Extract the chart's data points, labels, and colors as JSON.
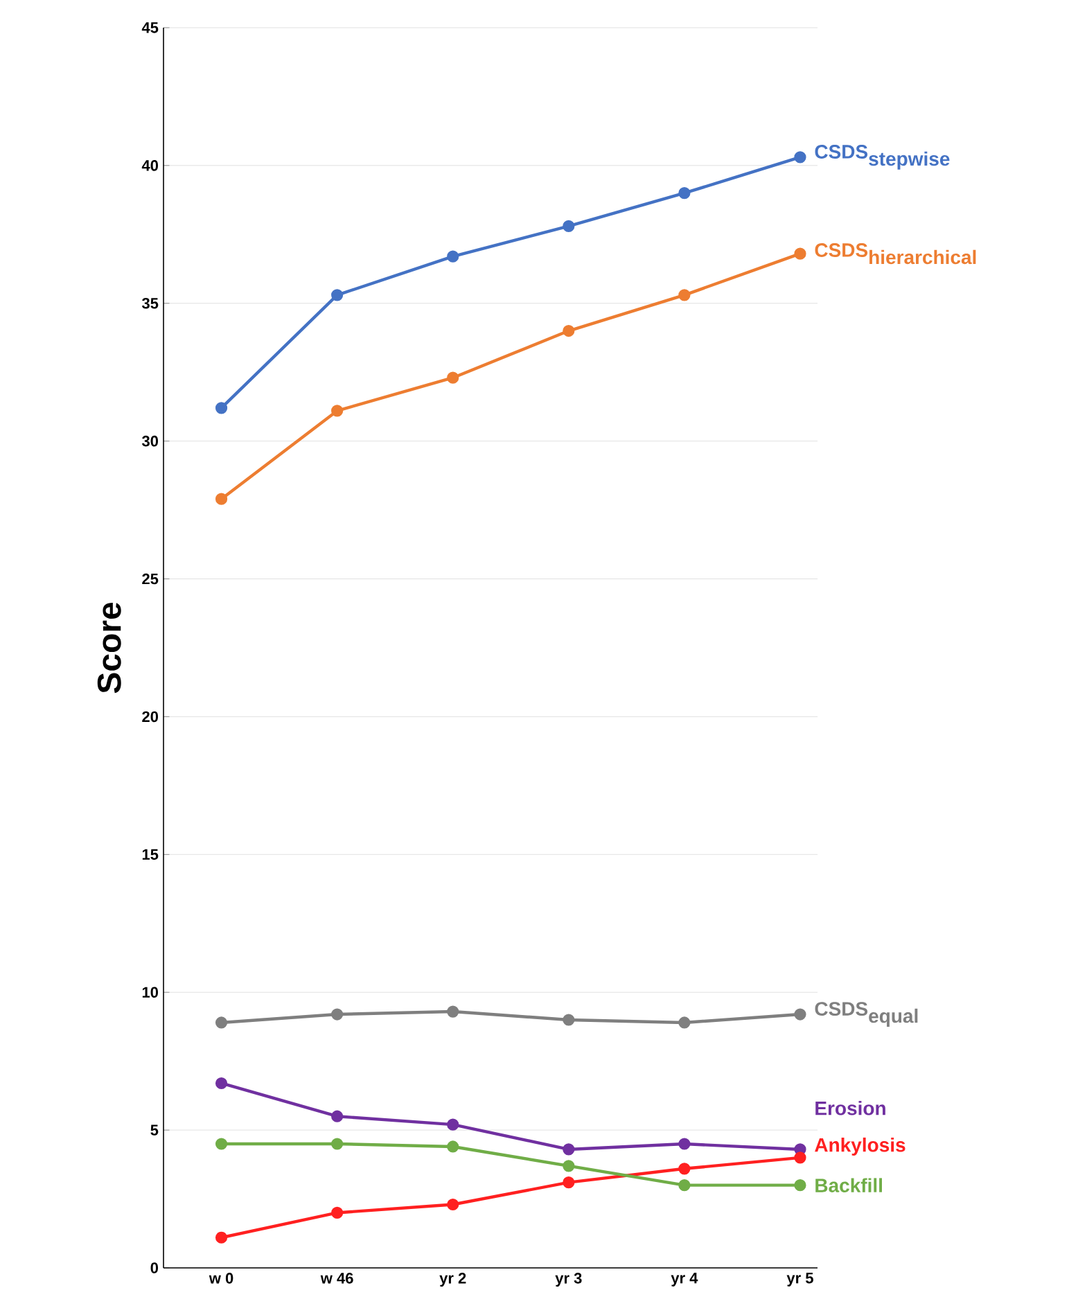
{
  "chart_data": {
    "type": "line",
    "ylabel": "Score",
    "categories": [
      "w 0",
      "w 46",
      "yr 2",
      "yr 3",
      "yr  4",
      "yr 5"
    ],
    "series": [
      {
        "name": "\\textbf{CSDS}_{\\textbf{stepwise}}",
        "color": "#4472c4",
        "values": [
          31.2,
          35.3,
          36.7,
          37.8,
          39.0,
          40.3
        ]
      },
      {
        "name": "\\textbf{CSDS}_{\\textbf{hierarchical}}",
        "color": "#ed7d31",
        "values": [
          27.9,
          31.1,
          32.3,
          34.0,
          35.3,
          36.8
        ]
      },
      {
        "name": "\\textbf{CSDS}_{\\textbf{equal}}",
        "color": "#7f7f7f",
        "values": [
          8.9,
          9.2,
          9.3,
          9.0,
          8.9,
          9.2
        ]
      },
      {
        "name": "\\textbf{Erosion}",
        "color": "#7030a0",
        "values": [
          6.7,
          5.5,
          5.2,
          4.3,
          4.5,
          4.3
        ]
      },
      {
        "name": "\\textbf{Ankylosis}",
        "color": "#ff2020",
        "values": [
          1.1,
          2.0,
          2.3,
          3.1,
          3.6,
          4.0
        ]
      },
      {
        "name": "\\textbf{Backfill}",
        "color": "#70ad47",
        "values": [
          4.5,
          4.5,
          4.4,
          3.7,
          3.0,
          3.0
        ]
      }
    ],
    "ylim": [
      0,
      45
    ],
    "yticks": [
      0,
      5,
      10,
      15,
      20,
      25,
      30,
      35,
      40,
      45
    ],
    "grid": "y",
    "legend": false,
    "marker": "circle",
    "line_style": "solid"
  }
}
